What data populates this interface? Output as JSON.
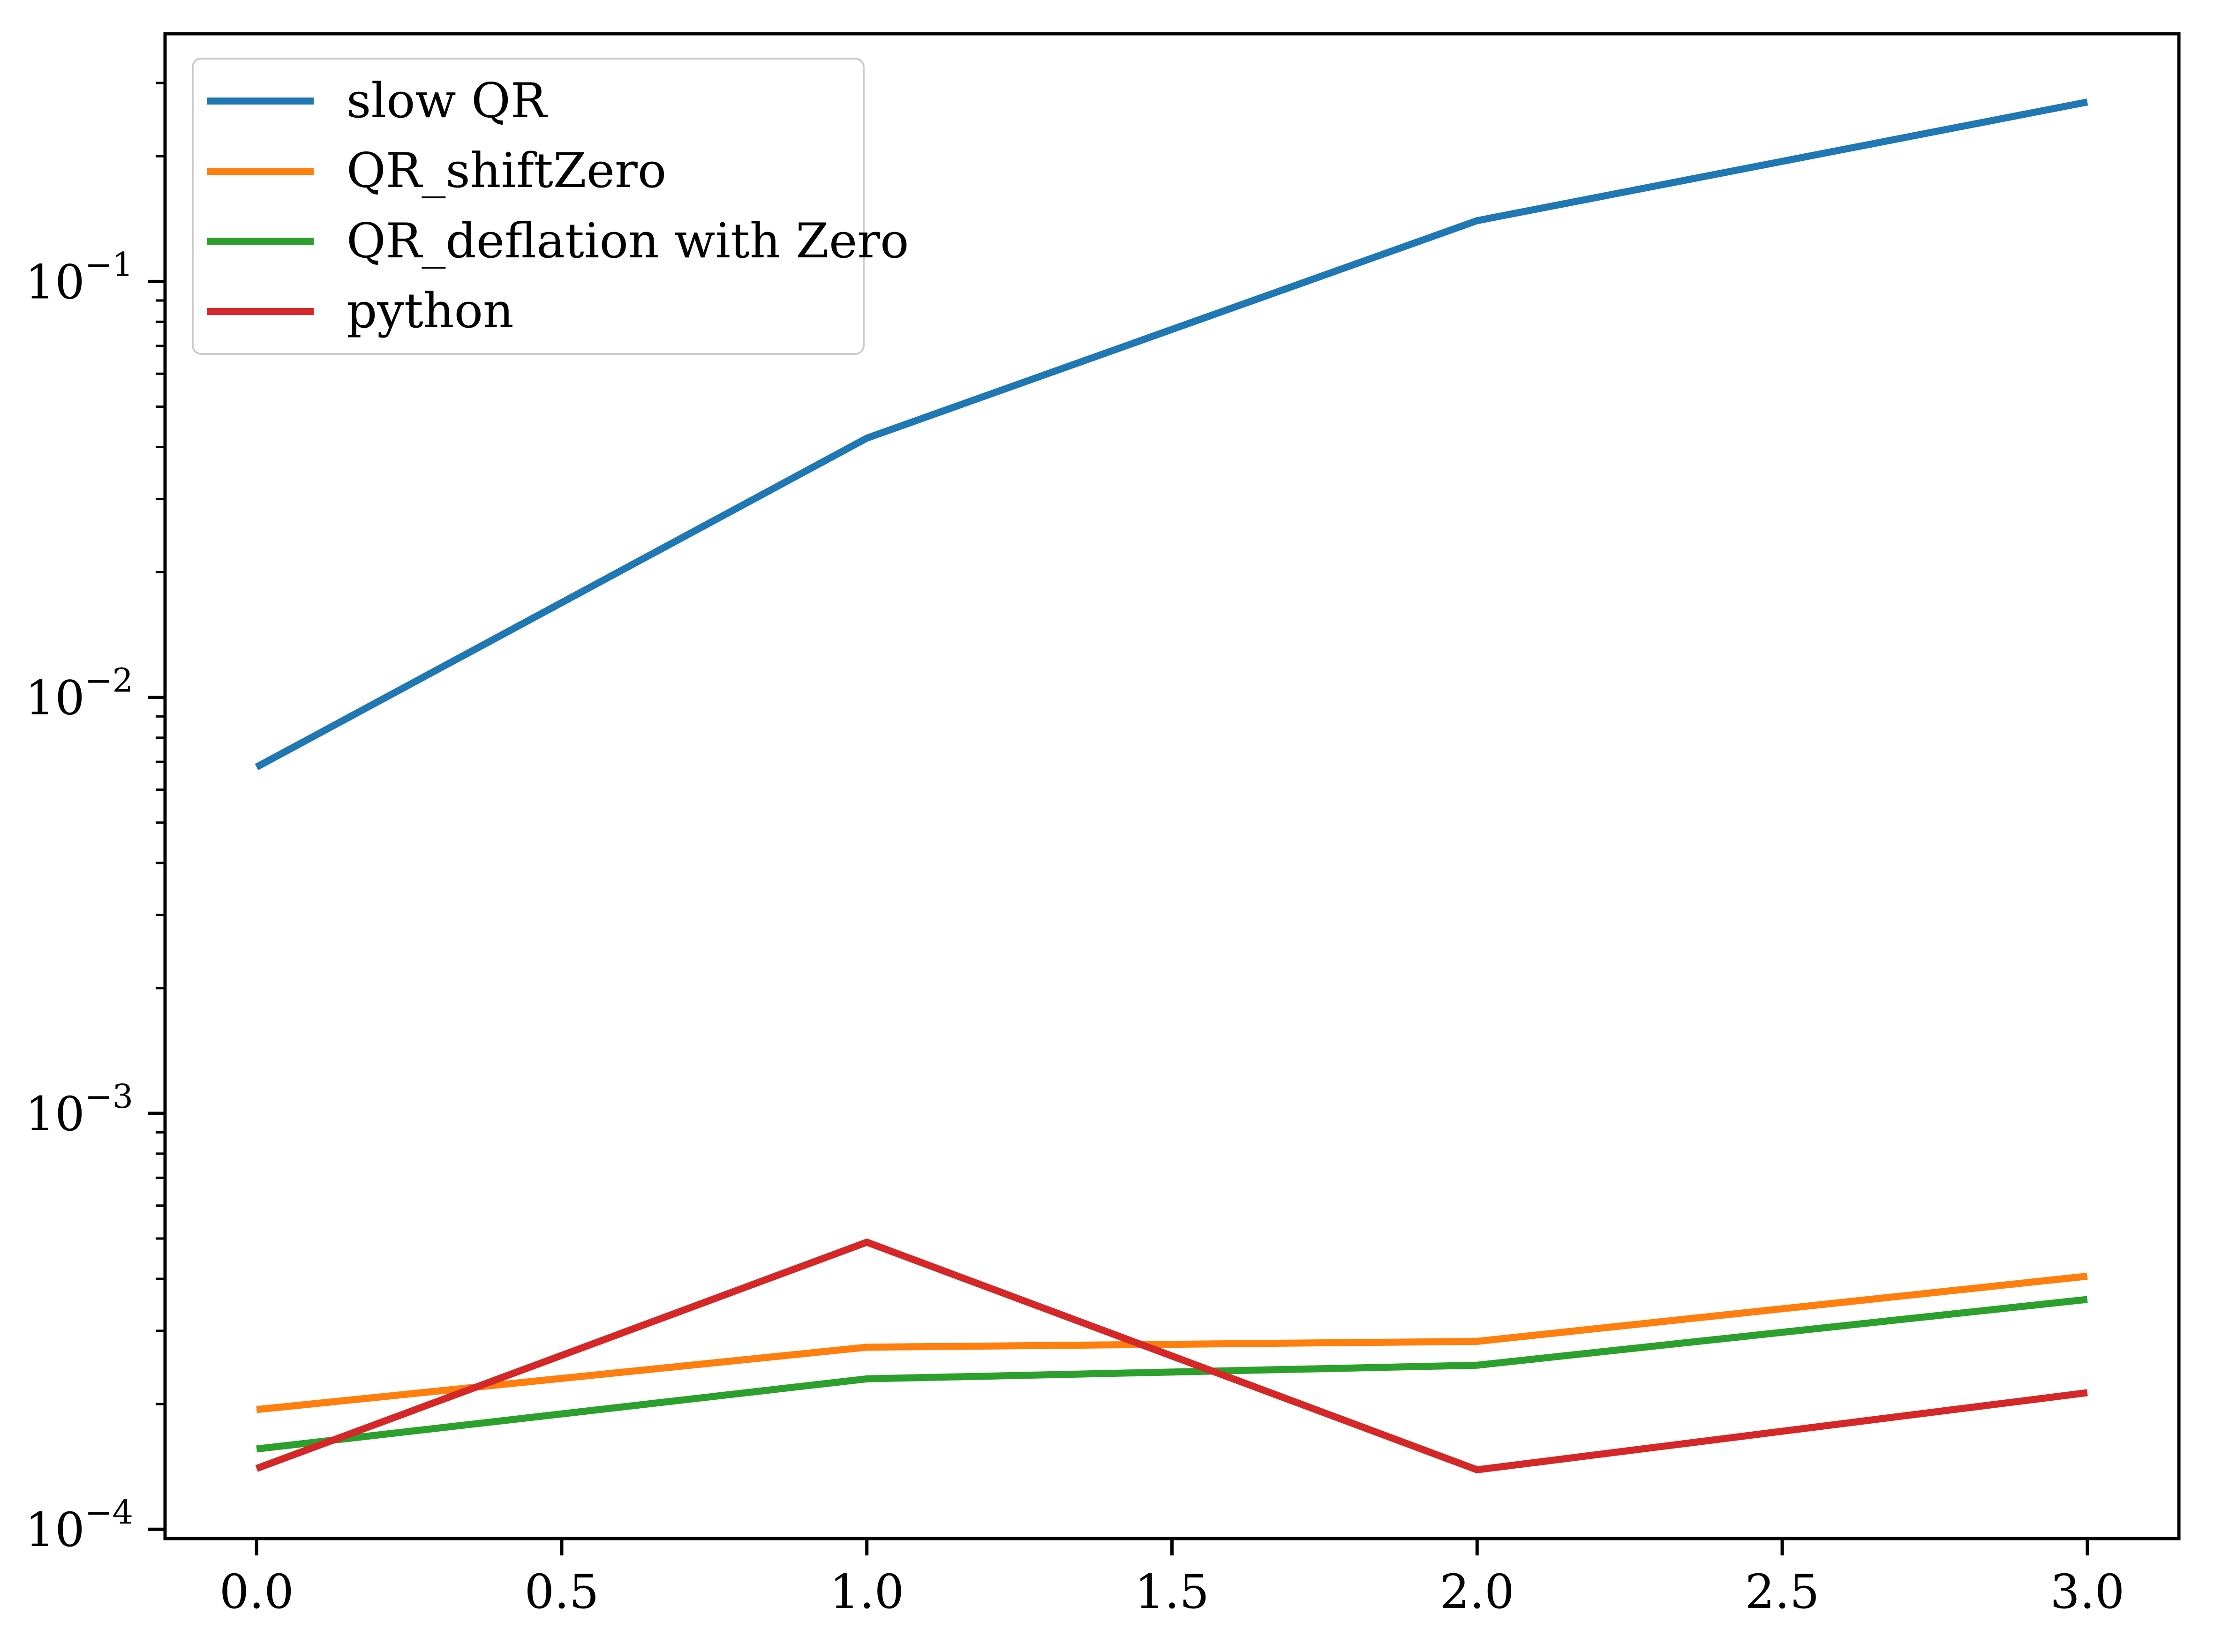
{
  "chart_data": {
    "type": "line",
    "x": [
      0,
      1,
      2,
      3
    ],
    "series": [
      {
        "name": "slow QR",
        "color": "#1f77b4",
        "values": [
          0.0068,
          0.042,
          0.14,
          0.27
        ]
      },
      {
        "name": "QR_shiftZero",
        "color": "#ff7f0e",
        "values": [
          0.000194,
          0.000274,
          0.000283,
          0.000406
        ]
      },
      {
        "name": "QR_deflation with Zero",
        "color": "#2ca02c",
        "values": [
          0.000156,
          0.00023,
          0.000248,
          0.000357
        ]
      },
      {
        "name": "python",
        "color": "#d62728",
        "values": [
          0.00014,
          0.00049,
          0.000139,
          0.000213
        ]
      }
    ],
    "title": "",
    "xlabel": "",
    "ylabel": "",
    "yscale": "log",
    "grid": false,
    "legend_position": "upper left",
    "axes": {
      "xlim": [
        -0.15,
        3.15
      ],
      "ylim": [
        9.5e-05,
        0.394
      ],
      "xticks": [
        {
          "value": 0.0,
          "label": "0.0"
        },
        {
          "value": 0.5,
          "label": "0.5"
        },
        {
          "value": 1.0,
          "label": "1.0"
        },
        {
          "value": 1.5,
          "label": "1.5"
        },
        {
          "value": 2.0,
          "label": "2.0"
        },
        {
          "value": 2.5,
          "label": "2.5"
        },
        {
          "value": 3.0,
          "label": "3.0"
        }
      ],
      "yticks": [
        {
          "value": 0.1,
          "base": "10",
          "exp": "−1"
        },
        {
          "value": 0.01,
          "base": "10",
          "exp": "−2"
        },
        {
          "value": 0.001,
          "base": "10",
          "exp": "−3"
        },
        {
          "value": 0.0001,
          "base": "10",
          "exp": "−4"
        }
      ]
    },
    "colors": {
      "axis": "#000000",
      "tick_label": "#000000",
      "legend_border": "#cccccc"
    }
  }
}
